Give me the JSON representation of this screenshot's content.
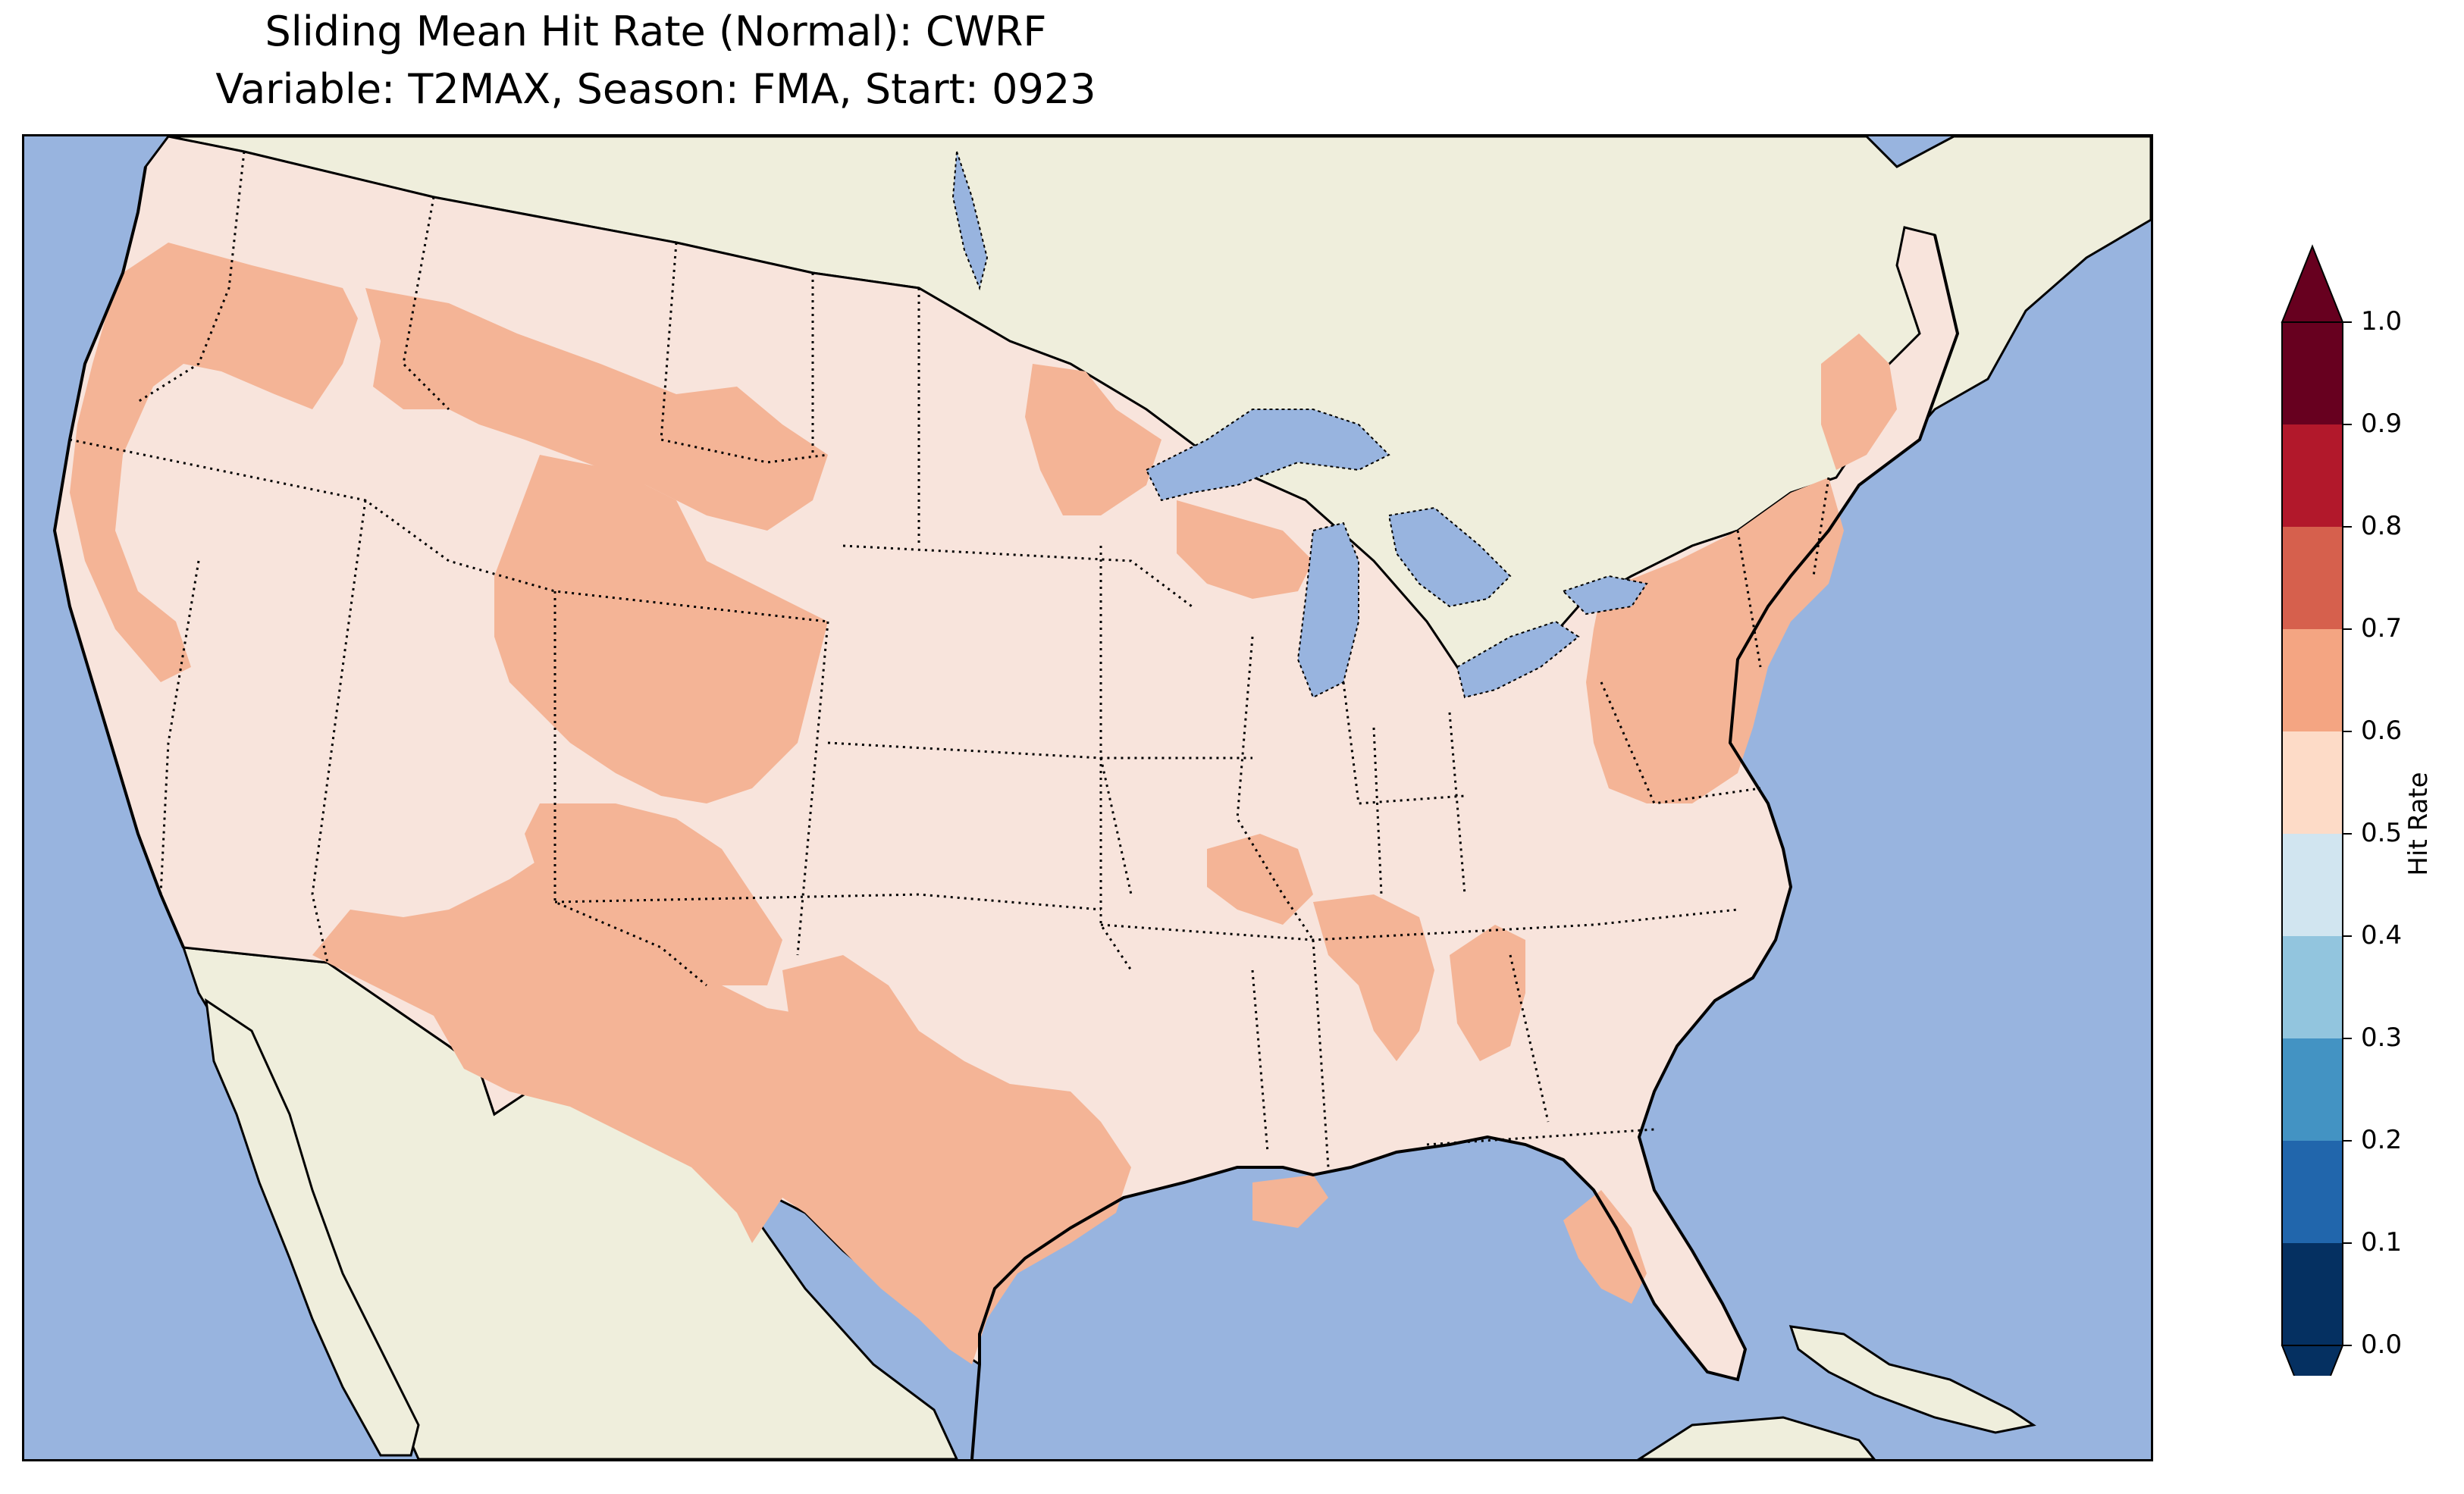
{
  "title": {
    "line1": "Sliding Mean Hit Rate (Normal): CWRF",
    "line2": "Variable: T2MAX, Season: FMA, Start: 0923"
  },
  "map": {
    "region": "Contiguous United States",
    "ocean_color": "#98b4df",
    "land_color": "#efeedc",
    "lake_color": "#98b4df",
    "state_border_style": "dotted",
    "coastline_style": "solid",
    "dominant_category_color": "#f8e4dc",
    "secondary_category_color": "#f4b496",
    "outlier_pixel_colors": [
      "#e2ecf3",
      "#f8e4dc"
    ]
  },
  "colorbar": {
    "label": "Hit Rate",
    "extend": "both",
    "ticks": [
      "0.0",
      "0.1",
      "0.2",
      "0.3",
      "0.4",
      "0.5",
      "0.6",
      "0.7",
      "0.8",
      "0.9",
      "1.0"
    ],
    "colors": [
      "#053061",
      "#2166ac",
      "#4393c3",
      "#92c5de",
      "#d1e5f0",
      "#f7f7f7",
      "#fddbc7",
      "#f4a582",
      "#d6604d",
      "#b2182b",
      "#67001f"
    ]
  },
  "chart_data": {
    "type": "heatmap",
    "title": "Sliding Mean Hit Rate (Normal): CWRF",
    "subtitle": "Variable: T2MAX, Season: FMA, Start: 0923",
    "colorbar_label": "Hit Rate",
    "vmin": 0.0,
    "vmax": 1.0,
    "levels": [
      0.0,
      0.1,
      0.2,
      0.3,
      0.4,
      0.5,
      0.6,
      0.7,
      0.8,
      0.9,
      1.0
    ],
    "dominant_value_bin": [
      0.5,
      0.6
    ],
    "secondary_value_bin": [
      0.6,
      0.7
    ]
  }
}
